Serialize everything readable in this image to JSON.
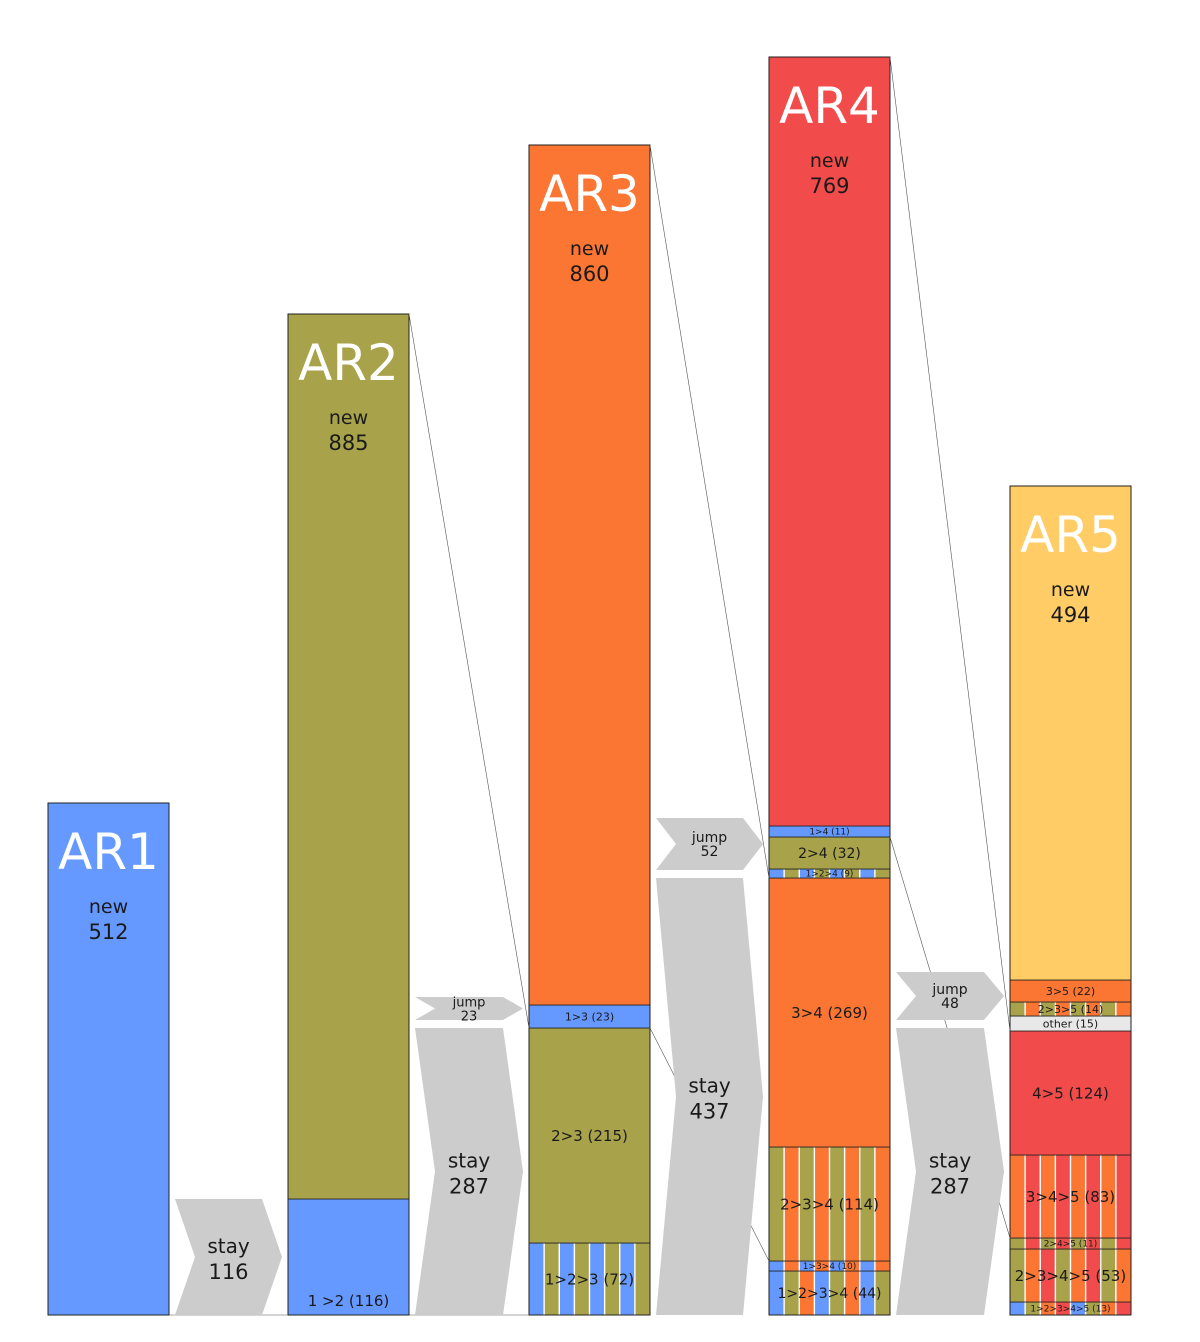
{
  "colors": {
    "AR1": "#6699ff",
    "AR2": "#a8a24a",
    "AR3": "#fb7533",
    "AR4": "#f24b4b",
    "AR5": "#ffcc66",
    "other": "#e8e8e8",
    "arrow": "#cccccc"
  },
  "chart_data": {
    "type": "bar",
    "categories": [
      "AR1",
      "AR2",
      "AR3",
      "AR4",
      "AR5"
    ],
    "stacks": [
      {
        "name": "AR1",
        "new_label": "new",
        "segments": [
          {
            "label": "",
            "value": 512,
            "colors": [
              "AR1"
            ],
            "kind": "new"
          }
        ]
      },
      {
        "name": "AR2",
        "new_label": "new",
        "segments": [
          {
            "label": "1 >2 (116)",
            "value": 116,
            "colors": [
              "AR1"
            ],
            "kind": "carry"
          },
          {
            "label": "",
            "value": 885,
            "colors": [
              "AR2"
            ],
            "kind": "new"
          }
        ]
      },
      {
        "name": "AR3",
        "new_label": "new",
        "segments": [
          {
            "label": "1>2>3 (72)",
            "value": 72,
            "colors": [
              "AR1",
              "AR2"
            ],
            "kind": "carry"
          },
          {
            "label": "2>3 (215)",
            "value": 215,
            "colors": [
              "AR2"
            ],
            "kind": "carry"
          },
          {
            "label": "1>3 (23)",
            "value": 23,
            "colors": [
              "AR1"
            ],
            "kind": "carry"
          },
          {
            "label": "",
            "value": 860,
            "colors": [
              "AR3"
            ],
            "kind": "new"
          }
        ]
      },
      {
        "name": "AR4",
        "new_label": "new",
        "segments": [
          {
            "label": "1>2>3>4 (44)",
            "value": 44,
            "colors": [
              "AR1",
              "AR2",
              "AR3"
            ],
            "kind": "carry"
          },
          {
            "label": "1>3>4 (10)",
            "value": 10,
            "colors": [
              "AR1",
              "AR3"
            ],
            "kind": "carry"
          },
          {
            "label": "2>3>4 (114)",
            "value": 114,
            "colors": [
              "AR2",
              "AR3"
            ],
            "kind": "carry"
          },
          {
            "label": "3>4 (269)",
            "value": 269,
            "colors": [
              "AR3"
            ],
            "kind": "carry"
          },
          {
            "label": "1>2>4 (9)",
            "value": 9,
            "colors": [
              "AR1",
              "AR2"
            ],
            "kind": "carry"
          },
          {
            "label": "2>4 (32)",
            "value": 32,
            "colors": [
              "AR2"
            ],
            "kind": "carry"
          },
          {
            "label": "1>4 (11)",
            "value": 11,
            "colors": [
              "AR1"
            ],
            "kind": "carry"
          },
          {
            "label": "",
            "value": 769,
            "colors": [
              "AR4"
            ],
            "kind": "new"
          }
        ]
      },
      {
        "name": "AR5",
        "new_label": "new",
        "segments": [
          {
            "label": "1>2>3>4>5 (13)",
            "value": 13,
            "colors": [
              "AR1",
              "AR2",
              "AR3",
              "AR4"
            ],
            "kind": "carry"
          },
          {
            "label": "2>3>4>5 (53)",
            "value": 53,
            "colors": [
              "AR2",
              "AR3",
              "AR4"
            ],
            "kind": "carry"
          },
          {
            "label": "2>4>5 (11)",
            "value": 11,
            "colors": [
              "AR2",
              "AR4"
            ],
            "kind": "carry"
          },
          {
            "label": "3>4>5 (83)",
            "value": 83,
            "colors": [
              "AR3",
              "AR4"
            ],
            "kind": "carry"
          },
          {
            "label": "4>5 (124)",
            "value": 124,
            "colors": [
              "AR4"
            ],
            "kind": "carry"
          },
          {
            "label": "other (15)",
            "value": 15,
            "colors": [
              "other"
            ],
            "kind": "carry"
          },
          {
            "label": "2>3>5 (14)",
            "value": 14,
            "colors": [
              "AR2",
              "AR3"
            ],
            "kind": "carry"
          },
          {
            "label": "3>5 (22)",
            "value": 22,
            "colors": [
              "AR3"
            ],
            "kind": "carry"
          },
          {
            "label": "",
            "value": 494,
            "colors": [
              "AR5"
            ],
            "kind": "new"
          }
        ]
      }
    ],
    "flows": [
      {
        "between": [
          "AR1",
          "AR2"
        ],
        "stay_label": "stay",
        "stay": 116
      },
      {
        "between": [
          "AR2",
          "AR3"
        ],
        "stay_label": "stay",
        "stay": 287,
        "jump_label": "jump",
        "jump": 23
      },
      {
        "between": [
          "AR3",
          "AR4"
        ],
        "stay_label": "stay",
        "stay": 437,
        "jump_label": "jump",
        "jump": 52
      },
      {
        "between": [
          "AR4",
          "AR5"
        ],
        "stay_label": "stay",
        "stay": 287,
        "jump_label": "jump",
        "jump": 48
      }
    ]
  }
}
